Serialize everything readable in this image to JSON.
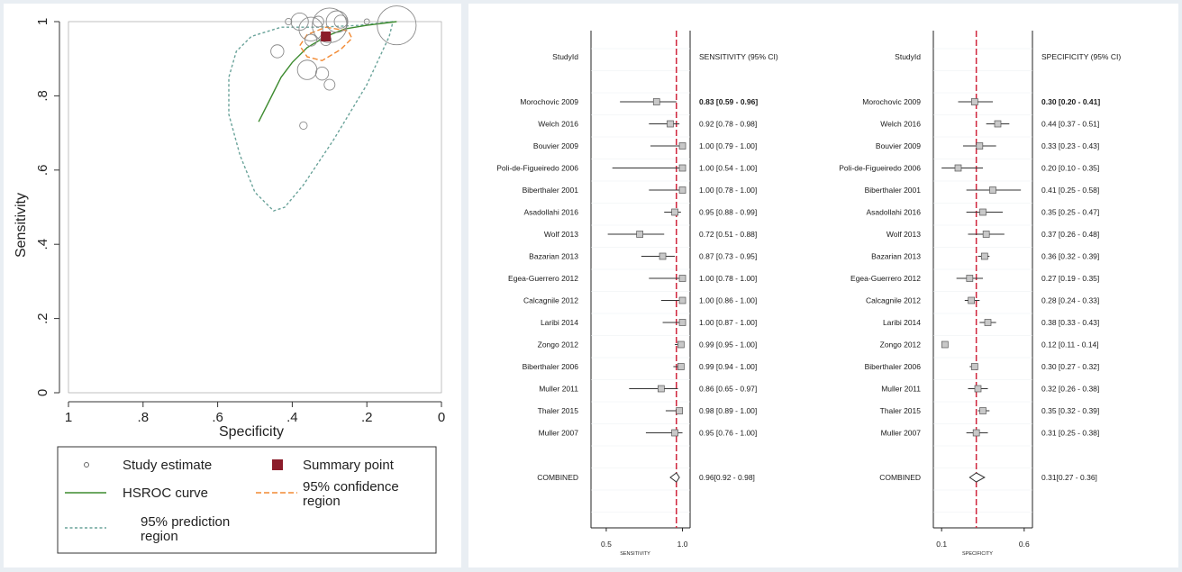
{
  "chart_data": [
    {
      "type": "scatter",
      "title": "",
      "xlabel": "Specificity",
      "ylabel": "Sensitivity",
      "xlim": [
        1,
        0
      ],
      "ylim": [
        0,
        1
      ],
      "x_reversed": true,
      "xticks": [
        {
          "v": 1,
          "label": "1"
        },
        {
          "v": 0.8,
          "label": ".8"
        },
        {
          "v": 0.6,
          "label": ".6"
        },
        {
          "v": 0.4,
          "label": ".4"
        },
        {
          "v": 0.2,
          "label": ".2"
        },
        {
          "v": 0,
          "label": "0"
        }
      ],
      "yticks": [
        {
          "v": 0,
          "label": "0"
        },
        {
          "v": 0.2,
          "label": ".2"
        },
        {
          "v": 0.4,
          "label": ".4"
        },
        {
          "v": 0.6,
          "label": ".6"
        },
        {
          "v": 0.8,
          "label": ".8"
        },
        {
          "v": 1,
          "label": "1"
        }
      ],
      "grid": false,
      "legend_placement": "bottom",
      "study_estimates": [
        {
          "spec": 0.3,
          "sens": 0.83,
          "weight": 1.0
        },
        {
          "spec": 0.44,
          "sens": 0.92,
          "weight": 1.2
        },
        {
          "spec": 0.33,
          "sens": 1.0,
          "weight": 1.0
        },
        {
          "spec": 0.2,
          "sens": 1.0,
          "weight": 0.5
        },
        {
          "spec": 0.41,
          "sens": 1.0,
          "weight": 0.6
        },
        {
          "spec": 0.35,
          "sens": 0.95,
          "weight": 1.1
        },
        {
          "spec": 0.37,
          "sens": 0.72,
          "weight": 0.7
        },
        {
          "spec": 0.36,
          "sens": 0.87,
          "weight": 1.8
        },
        {
          "spec": 0.27,
          "sens": 1.0,
          "weight": 1.2
        },
        {
          "spec": 0.28,
          "sens": 1.0,
          "weight": 2.0
        },
        {
          "spec": 0.38,
          "sens": 1.0,
          "weight": 1.6
        },
        {
          "spec": 0.12,
          "sens": 0.99,
          "weight": 3.6
        },
        {
          "spec": 0.3,
          "sens": 0.99,
          "weight": 3.2
        },
        {
          "spec": 0.32,
          "sens": 0.86,
          "weight": 1.2
        },
        {
          "spec": 0.35,
          "sens": 0.98,
          "weight": 2.2
        },
        {
          "spec": 0.31,
          "sens": 0.95,
          "weight": 1.0
        }
      ],
      "summary_point": {
        "spec": 0.31,
        "sens": 0.96
      },
      "hsroc_curve": [
        [
          0.49,
          0.73
        ],
        [
          0.46,
          0.79
        ],
        [
          0.43,
          0.85
        ],
        [
          0.4,
          0.89
        ],
        [
          0.36,
          0.93
        ],
        [
          0.31,
          0.96
        ],
        [
          0.26,
          0.98
        ],
        [
          0.2,
          0.99
        ],
        [
          0.12,
          1.0
        ]
      ],
      "confidence_region": [
        [
          0.31,
          0.985
        ],
        [
          0.25,
          0.975
        ],
        [
          0.24,
          0.955
        ],
        [
          0.27,
          0.925
        ],
        [
          0.32,
          0.895
        ],
        [
          0.36,
          0.905
        ],
        [
          0.38,
          0.935
        ],
        [
          0.36,
          0.965
        ]
      ],
      "prediction_region": [
        [
          0.13,
          1.0
        ],
        [
          0.22,
          0.99
        ],
        [
          0.33,
          0.985
        ],
        [
          0.43,
          0.985
        ],
        [
          0.51,
          0.96
        ],
        [
          0.55,
          0.92
        ],
        [
          0.57,
          0.85
        ],
        [
          0.57,
          0.75
        ],
        [
          0.54,
          0.64
        ],
        [
          0.5,
          0.54
        ],
        [
          0.45,
          0.49
        ],
        [
          0.42,
          0.5
        ],
        [
          0.37,
          0.56
        ],
        [
          0.29,
          0.68
        ],
        [
          0.2,
          0.83
        ],
        [
          0.14,
          0.96
        ],
        [
          0.13,
          1.0
        ]
      ],
      "legend": [
        {
          "key": "study",
          "label": "Study estimate",
          "color": "#888888"
        },
        {
          "key": "summary",
          "label": "Summary point",
          "color": "#8b1c2a"
        },
        {
          "key": "hsroc",
          "label": "HSROC curve",
          "color": "#3d8b2f"
        },
        {
          "key": "conf",
          "label": "95% confidence region",
          "color": "#f28a33"
        },
        {
          "key": "pred",
          "label": "95% prediction region",
          "color": "#6aa39a"
        }
      ]
    },
    {
      "type": "forest",
      "measure": "sensitivity",
      "column_headers": {
        "study": "StudyId",
        "estimate": "SENSITIVITY (95% CI)"
      },
      "axis_label": "SENSITIVITY",
      "xlim": [
        0.4,
        1.05
      ],
      "xticks": [
        {
          "v": 0.5,
          "label": "0.5"
        },
        {
          "v": 1.0,
          "label": "1.0"
        }
      ],
      "pooled_line": 0.96,
      "rows": [
        {
          "study": "Morochovic 2009",
          "est": 0.83,
          "lo": 0.59,
          "hi": 0.96,
          "label": "0.83 [0.59 - 0.96]"
        },
        {
          "study": "Welch 2016",
          "est": 0.92,
          "lo": 0.78,
          "hi": 0.98,
          "label": "0.92 [0.78 - 0.98]"
        },
        {
          "study": "Bouvier 2009",
          "est": 1.0,
          "lo": 0.79,
          "hi": 1.0,
          "label": "1.00 [0.79 - 1.00]"
        },
        {
          "study": "Poli-de-Figueiredo 2006",
          "est": 1.0,
          "lo": 0.54,
          "hi": 1.0,
          "label": "1.00 [0.54 - 1.00]"
        },
        {
          "study": "Biberthaler 2001",
          "est": 1.0,
          "lo": 0.78,
          "hi": 1.0,
          "label": "1.00 [0.78 - 1.00]"
        },
        {
          "study": "Asadollahi 2016",
          "est": 0.95,
          "lo": 0.88,
          "hi": 0.99,
          "label": "0.95 [0.88 - 0.99]"
        },
        {
          "study": "Wolf 2013",
          "est": 0.72,
          "lo": 0.51,
          "hi": 0.88,
          "label": "0.72 [0.51 - 0.88]"
        },
        {
          "study": "Bazarian 2013",
          "est": 0.87,
          "lo": 0.73,
          "hi": 0.95,
          "label": "0.87 [0.73 - 0.95]"
        },
        {
          "study": "Egea-Guerrero 2012",
          "est": 1.0,
          "lo": 0.78,
          "hi": 1.0,
          "label": "1.00 [0.78 - 1.00]"
        },
        {
          "study": "Calcagnile 2012",
          "est": 1.0,
          "lo": 0.86,
          "hi": 1.0,
          "label": "1.00 [0.86 - 1.00]"
        },
        {
          "study": "Laribi 2014",
          "est": 1.0,
          "lo": 0.87,
          "hi": 1.0,
          "label": "1.00 [0.87 - 1.00]"
        },
        {
          "study": "Zongo 2012",
          "est": 0.99,
          "lo": 0.95,
          "hi": 1.0,
          "label": "0.99 [0.95 - 1.00]"
        },
        {
          "study": "Biberthaler 2006",
          "est": 0.99,
          "lo": 0.94,
          "hi": 1.0,
          "label": "0.99 [0.94 - 1.00]"
        },
        {
          "study": "Muller 2011",
          "est": 0.86,
          "lo": 0.65,
          "hi": 0.97,
          "label": "0.86 [0.65 - 0.97]"
        },
        {
          "study": "Thaler 2015",
          "est": 0.98,
          "lo": 0.89,
          "hi": 1.0,
          "label": "0.98 [0.89 - 1.00]"
        },
        {
          "study": "Muller 2007",
          "est": 0.95,
          "lo": 0.76,
          "hi": 1.0,
          "label": "0.95 [0.76 - 1.00]"
        }
      ],
      "combined": {
        "study": "COMBINED",
        "est": 0.96,
        "lo": 0.92,
        "hi": 0.98,
        "label": "0.96[0.92 - 0.98]"
      }
    },
    {
      "type": "forest",
      "measure": "specificity",
      "column_headers": {
        "study": "StudyId",
        "estimate": "SPECIFICITY (95% CI)"
      },
      "axis_label": "SPECIFICITY",
      "xlim": [
        0.05,
        0.65
      ],
      "xticks": [
        {
          "v": 0.1,
          "label": "0.1"
        },
        {
          "v": 0.6,
          "label": "0.6"
        }
      ],
      "pooled_line": 0.31,
      "rows": [
        {
          "study": "Morochovic 2009",
          "est": 0.3,
          "lo": 0.2,
          "hi": 0.41,
          "label": "0.30 [0.20 - 0.41]"
        },
        {
          "study": "Welch 2016",
          "est": 0.44,
          "lo": 0.37,
          "hi": 0.51,
          "label": "0.44 [0.37 - 0.51]"
        },
        {
          "study": "Bouvier 2009",
          "est": 0.33,
          "lo": 0.23,
          "hi": 0.43,
          "label": "0.33 [0.23 - 0.43]"
        },
        {
          "study": "Poli-de-Figueiredo 2006",
          "est": 0.2,
          "lo": 0.1,
          "hi": 0.35,
          "label": "0.20 [0.10 - 0.35]"
        },
        {
          "study": "Biberthaler 2001",
          "est": 0.41,
          "lo": 0.25,
          "hi": 0.58,
          "label": "0.41 [0.25 - 0.58]"
        },
        {
          "study": "Asadollahi 2016",
          "est": 0.35,
          "lo": 0.25,
          "hi": 0.47,
          "label": "0.35 [0.25 - 0.47]"
        },
        {
          "study": "Wolf 2013",
          "est": 0.37,
          "lo": 0.26,
          "hi": 0.48,
          "label": "0.37 [0.26 - 0.48]"
        },
        {
          "study": "Bazarian 2013",
          "est": 0.36,
          "lo": 0.32,
          "hi": 0.39,
          "label": "0.36 [0.32 - 0.39]"
        },
        {
          "study": "Egea-Guerrero 2012",
          "est": 0.27,
          "lo": 0.19,
          "hi": 0.35,
          "label": "0.27 [0.19 - 0.35]"
        },
        {
          "study": "Calcagnile 2012",
          "est": 0.28,
          "lo": 0.24,
          "hi": 0.33,
          "label": "0.28 [0.24 - 0.33]"
        },
        {
          "study": "Laribi 2014",
          "est": 0.38,
          "lo": 0.33,
          "hi": 0.43,
          "label": "0.38 [0.33 - 0.43]"
        },
        {
          "study": "Zongo 2012",
          "est": 0.12,
          "lo": 0.11,
          "hi": 0.14,
          "label": "0.12 [0.11 - 0.14]"
        },
        {
          "study": "Biberthaler 2006",
          "est": 0.3,
          "lo": 0.27,
          "hi": 0.32,
          "label": "0.30 [0.27 - 0.32]"
        },
        {
          "study": "Muller 2011",
          "est": 0.32,
          "lo": 0.26,
          "hi": 0.38,
          "label": "0.32 [0.26 - 0.38]"
        },
        {
          "study": "Thaler 2015",
          "est": 0.35,
          "lo": 0.32,
          "hi": 0.39,
          "label": "0.35 [0.32 - 0.39]"
        },
        {
          "study": "Muller 2007",
          "est": 0.31,
          "lo": 0.25,
          "hi": 0.38,
          "label": "0.31 [0.25 - 0.38]"
        }
      ],
      "combined": {
        "study": "COMBINED",
        "est": 0.31,
        "lo": 0.27,
        "hi": 0.36,
        "label": "0.31[0.27 - 0.36]"
      }
    }
  ],
  "colors": {
    "pooled_line": "#d0253c",
    "summary_point": "#8b1c2a",
    "hsroc": "#3d8b2f",
    "confidence": "#f28a33",
    "prediction": "#6aa39a",
    "study_circle": "#8a8a8a"
  }
}
